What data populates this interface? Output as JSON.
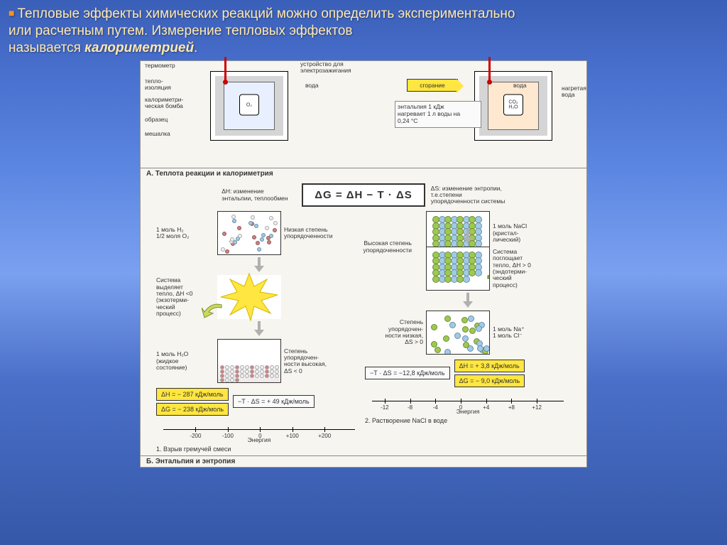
{
  "header": {
    "line1": "Тепловые эффекты химических реакций можно определить экспериментально",
    "line2": "или расчетным путем. Измерение тепловых эффектов",
    "line3_prefix": "называется ",
    "line3_em": "калориметрией",
    "line3_suffix": "."
  },
  "colors": {
    "yellow": "#ffe640",
    "green_mol": "#9ec94f",
    "blue_mol": "#9fcbe8",
    "red_mol": "#d08080",
    "white_mol": "#f0f0f0",
    "arrow_gl": "#c8da60",
    "arrow_gr": "#8fb840"
  },
  "sectionA": {
    "title": "А. Теплота реакции и калориметрия",
    "labels": {
      "thermometer": "термометр",
      "insulation": "тепло-\nизоляция",
      "bomb": "калориметри-\nческая бомба",
      "sample": "образец",
      "stirrer": "мешалка",
      "ignition": "устройство для\nэлектрозажигания",
      "water": "вода",
      "combustion": "сгорание",
      "heated_water": "нагретая\nвода",
      "o2": "O₂",
      "co2h2o": "CO₂\nH₂O"
    },
    "enthalpy_note": "энтальпия 1 кДж\nнагревает 1 л воды на\n0,24 °С"
  },
  "sectionB": {
    "title": "Б. Энтальпия и энтропия",
    "dh_def": "ΔH: изменение энтальпии, теплообмен",
    "ds_def": "ΔS: изменение энтропии, т.е.степени упорядоченности системы",
    "equation": "ΔG = ΔH − T · ΔS",
    "left": {
      "step1_l": "1 моль H₂\n1/2 моля O₂",
      "step1_r": "Низкая степень\nупорядоченности",
      "step2_l": "Система\nвыделяет\nтепло, ΔH <0\n(экзотерми-\nческий\nпроцесс)",
      "step3_l": "1 моль H₂O\n(жидкое\nсостояние)",
      "step3_r": "Степень\nупорядочен-\nности высокая,\nΔS < 0",
      "dh": "ΔH = − 287 кДж/моль",
      "ts": "−T · ΔS = + 49 кДж/моль",
      "dg": "ΔG = − 238 кДж/моль",
      "axis": {
        "min": -300,
        "max": 250,
        "ticks": [
          -200,
          -100,
          0,
          100,
          200
        ],
        "title": "Энергия"
      },
      "caption": "1. Взрыв гремучей смеси"
    },
    "right": {
      "step1_l": "1 моль NaCl\n(кристал-\nлический)",
      "step1_r": "Высокая степень\nупорядоченности",
      "step2_l": "Система\nпоглощает\nтепло, ΔH > 0\n(эндотерми-\nческий\nпроцесс)",
      "step3_l": "1 моль Na⁺\n1 моль Cl⁻",
      "step3_r": "Степень\nупорядочен-\nности низкая,\nΔS > 0",
      "dh": "ΔH = + 3,8 кДж/моль",
      "ts": "−T · ΔS = −12,8 кДж/моль",
      "dg": "ΔG = − 9,0 кДж/моль",
      "axis": {
        "min": -14,
        "max": 14,
        "ticks": [
          -12,
          -8,
          -4,
          0,
          4,
          8,
          12
        ],
        "title": "Энергия"
      },
      "caption": "2. Растворение NaCl в воде"
    }
  }
}
